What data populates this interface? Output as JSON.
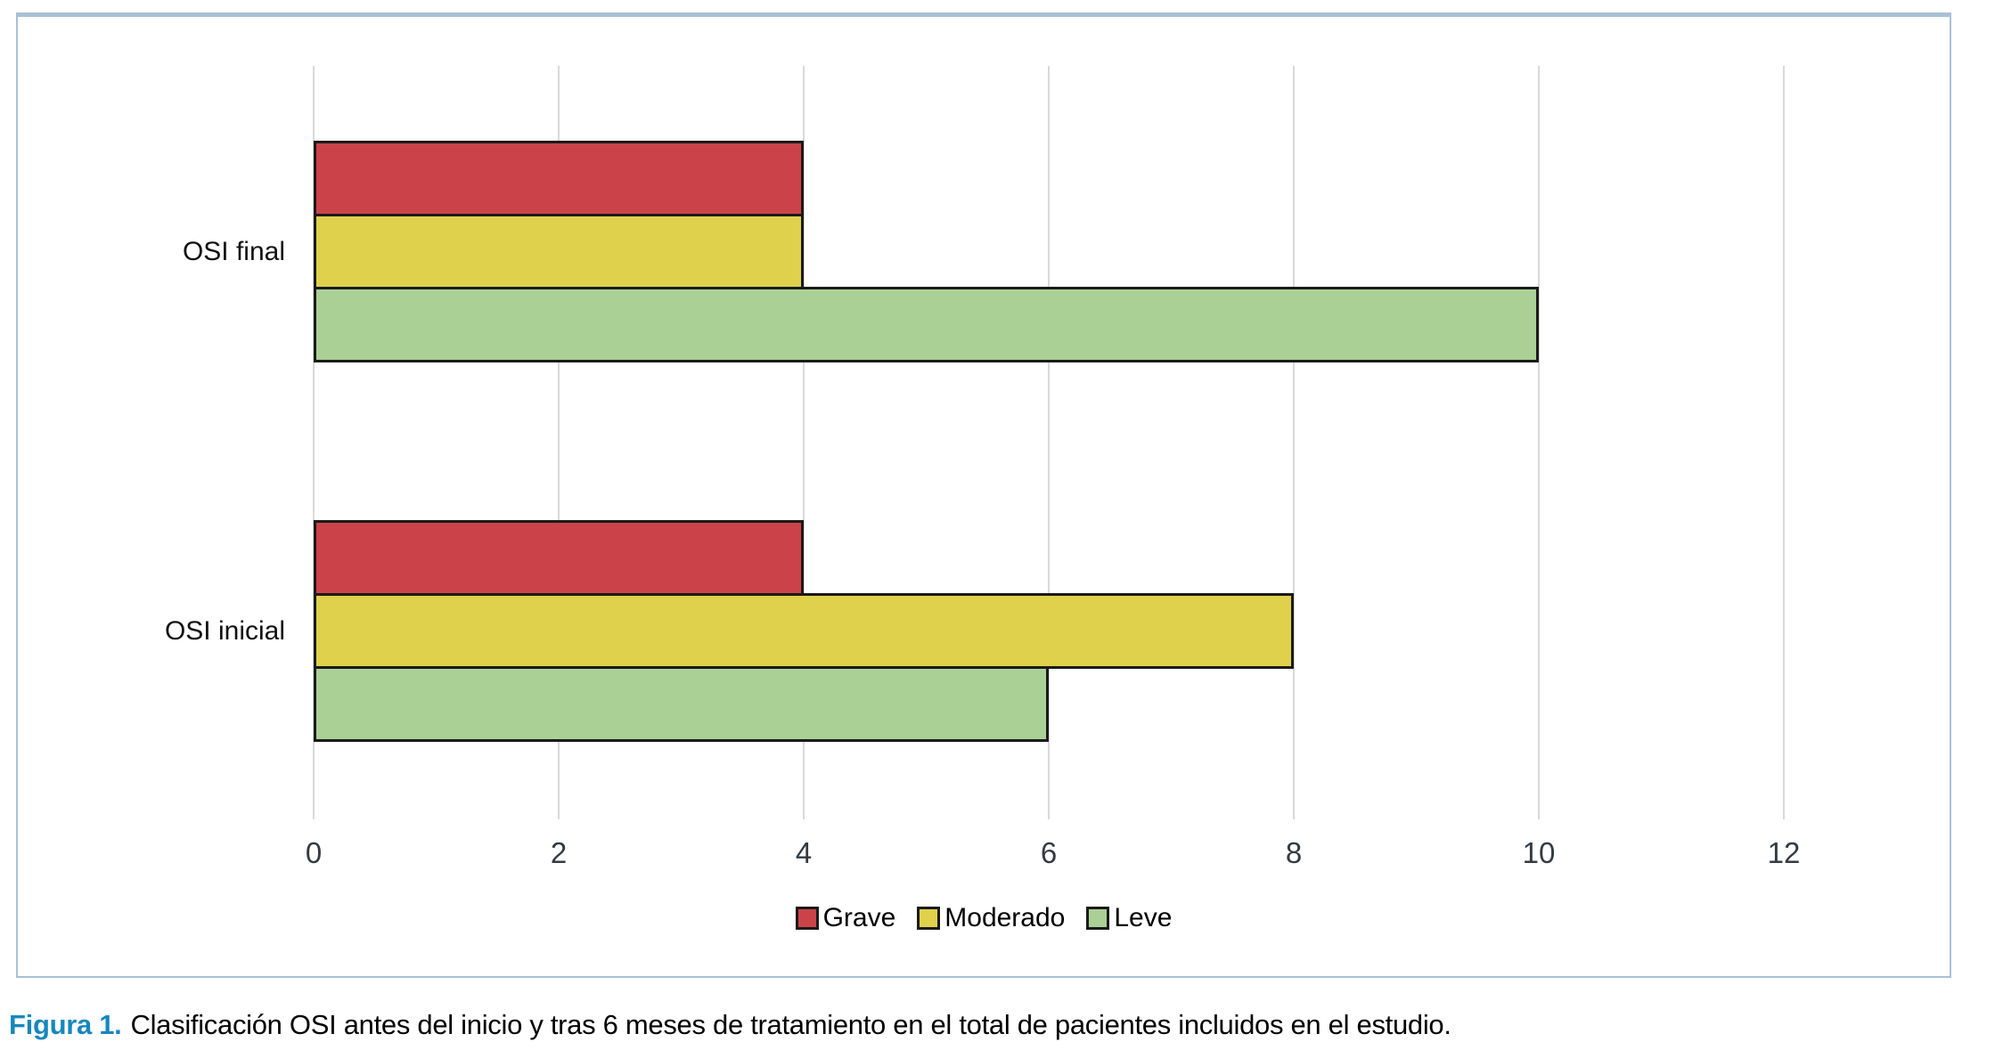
{
  "figure": {
    "caption_label": "Figura 1.",
    "caption_text": "Clasificación OSI antes del inicio y tras 6 meses de tratamiento en el total de pacientes incluidos en el estudio."
  },
  "chart_data": {
    "type": "bar",
    "orientation": "horizontal",
    "title": "",
    "xlabel": "",
    "ylabel": "",
    "categories": [
      "OSI final",
      "OSI inicial"
    ],
    "series": [
      {
        "name": "Grave",
        "color": "#cb4348",
        "values": [
          4,
          4
        ]
      },
      {
        "name": "Moderado",
        "color": "#dfd14c",
        "values": [
          4,
          8
        ]
      },
      {
        "name": "Leve",
        "color": "#abd096",
        "values": [
          10,
          6
        ]
      }
    ],
    "xlim": [
      0,
      13
    ],
    "xticks": [
      0,
      2,
      4,
      6,
      8,
      10,
      12
    ],
    "grid": "vertical",
    "legend_position": "bottom",
    "legend_labels": [
      "Grave",
      "Moderado",
      "Leve"
    ],
    "bar_outline_color": "#1a1a1a",
    "gridline_color": "#d9d9d9",
    "panel_border_color": "#a9c0d6",
    "tick_label_color": "#333b41",
    "caption_accent_color": "#1787be"
  }
}
